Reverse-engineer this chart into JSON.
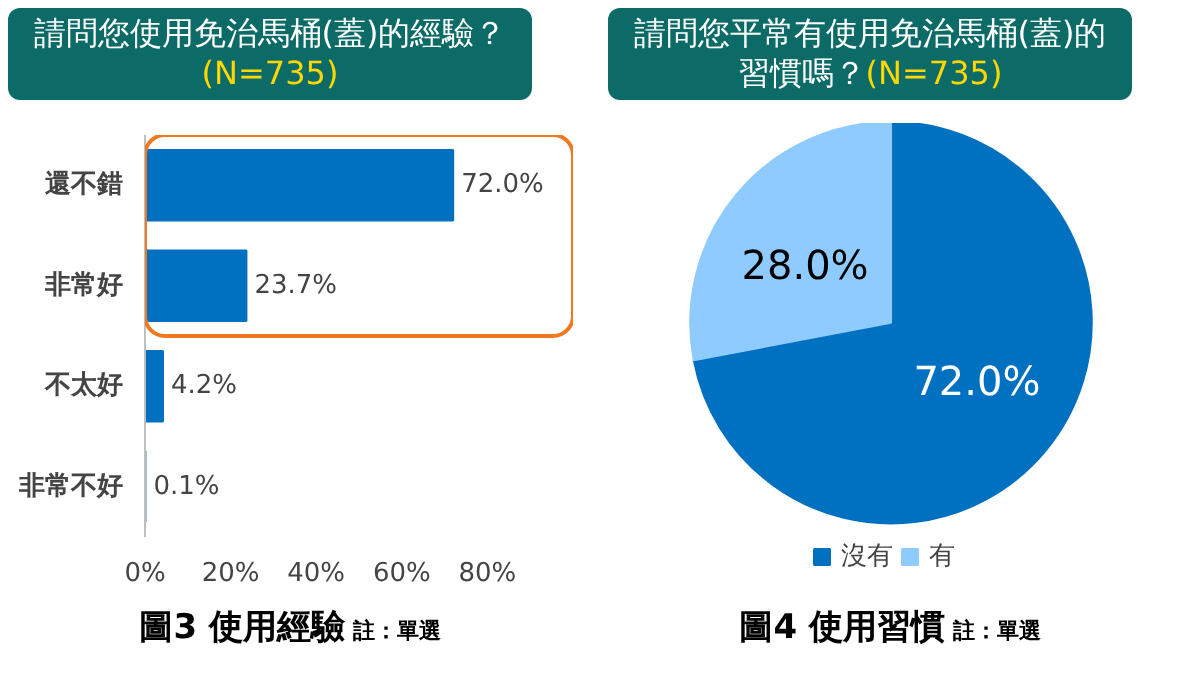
{
  "chart_data": [
    {
      "type": "bar",
      "title": "請問您使用免治馬桶(蓋)的經驗？",
      "subtitle": "(N=735)",
      "orientation": "horizontal",
      "categories": [
        "還不錯",
        "非常好",
        "不太好",
        "非常不好"
      ],
      "values": [
        72.0,
        23.7,
        4.2,
        0.1
      ],
      "color": "#0070c0",
      "value_labels": [
        "72.0%",
        "23.7%",
        "4.2%",
        "0.1%"
      ],
      "xlim": [
        0,
        100
      ],
      "xticks": [
        {
          "value": 0,
          "label": "0%"
        },
        {
          "value": 20,
          "label": "20%"
        },
        {
          "value": 40,
          "label": "40%"
        },
        {
          "value": 60,
          "label": "60%"
        },
        {
          "value": 80,
          "label": "80%"
        }
      ],
      "grid": false,
      "legend": false,
      "annotations": [
        "圖3 使用經驗",
        "註：單選"
      ]
    },
    {
      "type": "pie",
      "title": "請問您平常有使用免治馬桶(蓋)的習慣嗎？",
      "subtitle": "(N=735)",
      "categories": [
        "沒有",
        "有"
      ],
      "values": [
        72.0,
        28.0
      ],
      "colors": [
        "#0070c0",
        "#8fcbff"
      ],
      "value_labels": [
        "72.0%",
        "28.0%"
      ],
      "legend": "bottom",
      "annotations": [
        "圖4 使用習慣",
        "註：單選"
      ]
    }
  ]
}
